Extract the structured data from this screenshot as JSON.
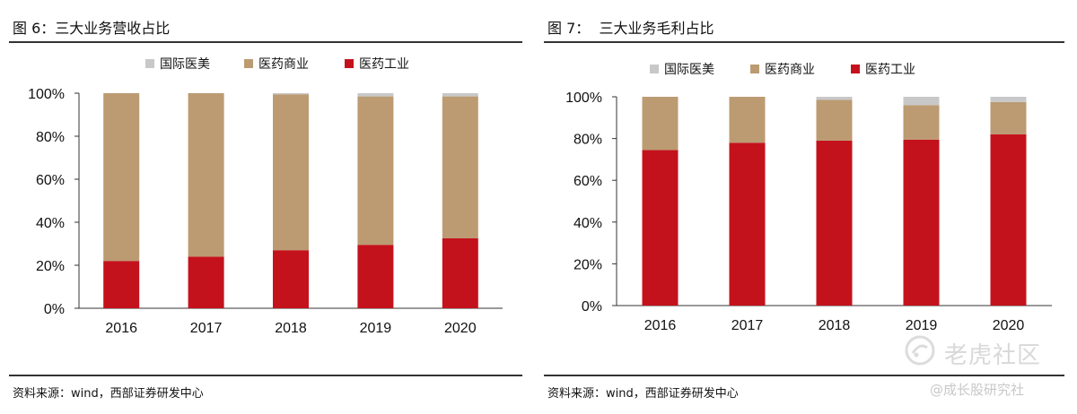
{
  "panels": [
    {
      "title": "图 6：三大业务营收占比",
      "source": "资料来源：wind，西部证券研发中心"
    },
    {
      "title": "图 7：  三大业务毛利占比",
      "source": "资料来源：wind，西部证券研发中心"
    }
  ],
  "watermark": {
    "text": "老虎社区",
    "credit": "@成长股研究社"
  },
  "colors": {
    "international": "#C8C8C8",
    "commerce": "#BC9B72",
    "industry": "#C4121D"
  },
  "chart_data": [
    {
      "type": "bar",
      "stacked": true,
      "title": "",
      "categories": [
        "2016",
        "2017",
        "2018",
        "2019",
        "2020"
      ],
      "series": [
        {
          "name": "医药工业",
          "values": [
            22,
            24,
            27,
            29.5,
            32.5
          ]
        },
        {
          "name": "医药商业",
          "values": [
            78,
            76,
            72.5,
            69,
            66
          ]
        },
        {
          "name": "国际医美",
          "values": [
            0,
            0,
            0.5,
            1.5,
            1.5
          ]
        }
      ],
      "legend_order": [
        "国际医美",
        "医药商业",
        "医药工业"
      ],
      "legend_position": "top",
      "ylim": [
        0,
        100
      ],
      "yticks": [
        "0%",
        "20%",
        "40%",
        "60%",
        "80%",
        "100%"
      ],
      "grid": false
    },
    {
      "type": "bar",
      "stacked": true,
      "title": "",
      "categories": [
        "2016",
        "2017",
        "2018",
        "2019",
        "2020"
      ],
      "series": [
        {
          "name": "医药工业",
          "values": [
            74.5,
            78,
            79,
            79.5,
            82
          ]
        },
        {
          "name": "医药商业",
          "values": [
            25.5,
            22,
            19.5,
            16.5,
            15.5
          ]
        },
        {
          "name": "国际医美",
          "values": [
            0,
            0,
            1.5,
            4,
            2.5
          ]
        }
      ],
      "legend_order": [
        "国际医美",
        "医药商业",
        "医药工业"
      ],
      "legend_position": "top",
      "ylim": [
        0,
        100
      ],
      "yticks": [
        "0%",
        "20%",
        "40%",
        "60%",
        "80%",
        "100%"
      ],
      "grid": false
    }
  ]
}
